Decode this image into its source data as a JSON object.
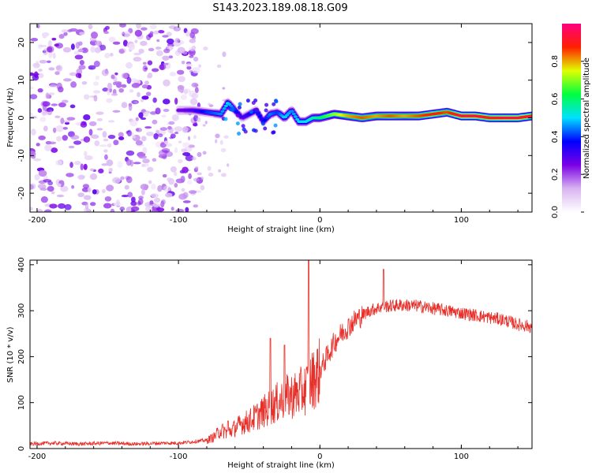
{
  "title": "S143.2023.189.08.18.G09",
  "chart_data": [
    {
      "type": "heatmap",
      "xlabel": "Height of straight line (km)",
      "ylabel": "Frequency (Hz)",
      "xlim": [
        -205,
        150
      ],
      "ylim": [
        -25,
        25
      ],
      "xticks": [
        -200,
        -100,
        0,
        100
      ],
      "yticks": [
        -20,
        -10,
        0,
        10,
        20
      ],
      "colorbar": {
        "label": "Normalized spectral amplitude",
        "range": [
          0,
          1
        ],
        "ticks": [
          0.0,
          0.2,
          0.4,
          0.6,
          0.8
        ],
        "colormap": [
          "#ffffff",
          "#d8b4f0",
          "#7a00e6",
          "#0000ff",
          "#00e0ff",
          "#00ff40",
          "#e0ff00",
          "#ff2000",
          "#ff0080"
        ]
      },
      "noise_region": {
        "x_range": [
          -205,
          -85
        ],
        "y_range": [
          -25,
          25
        ],
        "typical_amplitude": 0.15
      },
      "ridge": {
        "x": [
          -100,
          -90,
          -80,
          -70,
          -65,
          -60,
          -55,
          -50,
          -45,
          -40,
          -35,
          -30,
          -25,
          -20,
          -15,
          -10,
          -5,
          0,
          10,
          20,
          30,
          40,
          50,
          60,
          70,
          80,
          90,
          100,
          110,
          120,
          130,
          140,
          150
        ],
        "frequency": [
          2,
          2,
          1.5,
          1,
          4,
          2,
          0,
          1,
          2,
          -1,
          1,
          1.5,
          0,
          2,
          -1,
          -1,
          0,
          0,
          1,
          0.5,
          0,
          0.5,
          0.5,
          0.5,
          0.5,
          1,
          1.5,
          0.5,
          0.5,
          0,
          0,
          0,
          0.5
        ],
        "amplitude": [
          0.25,
          0.3,
          0.4,
          0.45,
          0.5,
          0.4,
          0.3,
          0.35,
          0.4,
          0.35,
          0.45,
          0.4,
          0.5,
          0.45,
          0.5,
          0.5,
          0.55,
          0.6,
          0.7,
          0.8,
          0.85,
          0.8,
          0.85,
          0.8,
          0.85,
          0.9,
          0.85,
          0.95,
          0.95,
          0.9,
          0.95,
          0.95,
          0.9
        ]
      }
    },
    {
      "type": "line",
      "xlabel": "Height of straight line (km)",
      "ylabel": "SNR (10 * v/v)",
      "xlim": [
        -205,
        150
      ],
      "ylim": [
        0,
        410
      ],
      "xticks": [
        -200,
        -100,
        0,
        100
      ],
      "yticks": [
        0,
        100,
        200,
        300,
        400
      ],
      "color": "#e8302a",
      "series": [
        {
          "x": [
            -205,
            -190,
            -170,
            -150,
            -130,
            -110,
            -100,
            -90,
            -80,
            -75,
            -70,
            -65,
            -60,
            -55,
            -50,
            -45,
            -40,
            -35,
            -30,
            -25,
            -20,
            -15,
            -10,
            -5,
            0,
            5,
            10,
            15,
            20,
            25,
            30,
            35,
            40,
            45,
            50,
            55,
            60,
            70,
            80,
            90,
            100,
            110,
            120,
            130,
            140,
            150
          ],
          "y": [
            10,
            12,
            10,
            12,
            10,
            12,
            12,
            15,
            18,
            25,
            40,
            35,
            45,
            55,
            60,
            70,
            80,
            90,
            100,
            110,
            115,
            120,
            130,
            150,
            170,
            200,
            230,
            250,
            265,
            280,
            290,
            300,
            305,
            310,
            310,
            312,
            312,
            310,
            305,
            300,
            295,
            290,
            285,
            280,
            270,
            265
          ]
        }
      ],
      "spikes": [
        {
          "x": -8,
          "y": 410
        },
        {
          "x": 45,
          "y": 390
        },
        {
          "x": -35,
          "y": 240
        },
        {
          "x": -25,
          "y": 225
        },
        {
          "x": -65,
          "y": 60
        }
      ]
    }
  ]
}
